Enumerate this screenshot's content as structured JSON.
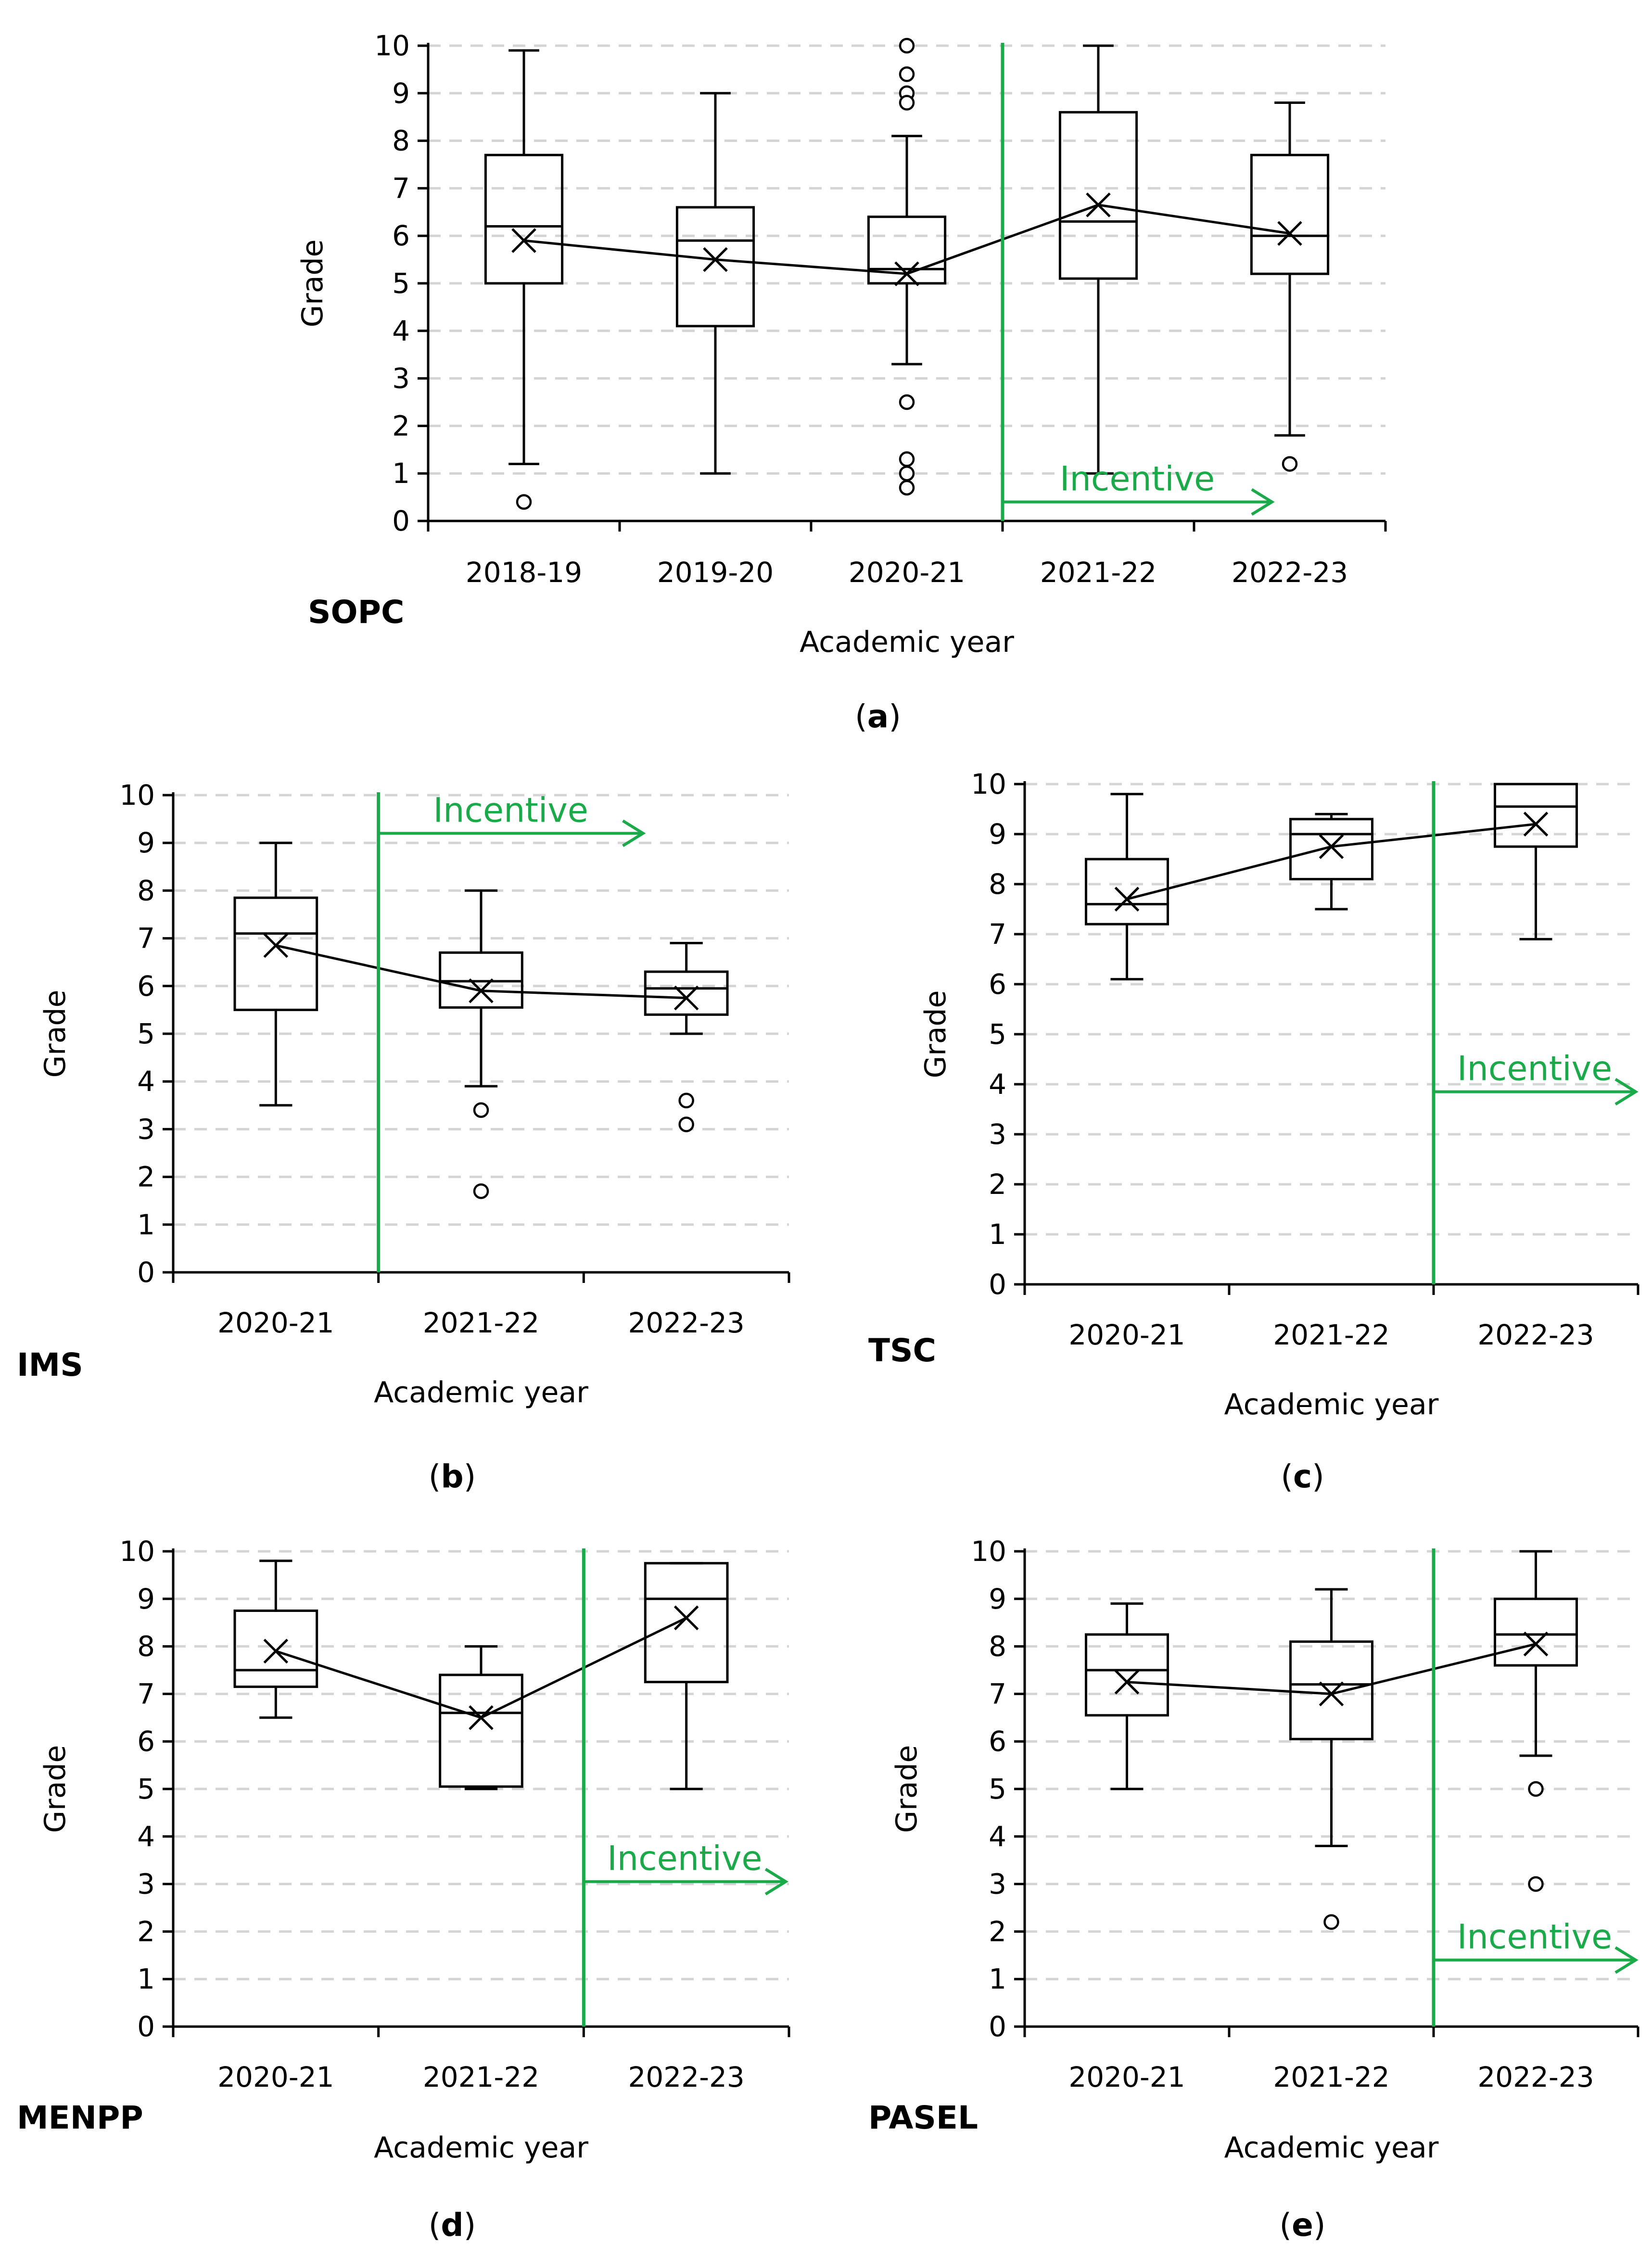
{
  "chart_data": [
    {
      "id": "a",
      "type": "box",
      "panel_label": "SOPC",
      "caption_letter": "a",
      "xlabel": "Academic year",
      "ylabel": "Grade",
      "ylim": [
        0,
        10
      ],
      "yticks": [
        "0",
        "1",
        "2",
        "3",
        "4",
        "5",
        "6",
        "7",
        "8",
        "9",
        "10"
      ],
      "grid": "dashed horizontal",
      "categories": [
        "2018-19",
        "2019-20",
        "2020-21",
        "2021-22",
        "2022-23"
      ],
      "boxes": [
        {
          "min": 1.2,
          "q1": 5.0,
          "median": 6.2,
          "q3": 7.7,
          "max": 9.9,
          "mean": 5.9,
          "outliers": [
            0.4
          ]
        },
        {
          "min": 1.0,
          "q1": 4.1,
          "median": 5.9,
          "q3": 6.6,
          "max": 9.0,
          "mean": 5.5,
          "outliers": []
        },
        {
          "min": 3.3,
          "q1": 5.0,
          "median": 5.3,
          "q3": 6.4,
          "max": 8.1,
          "mean": 5.2,
          "outliers": [
            10.0,
            9.4,
            9.0,
            8.8,
            2.5,
            1.3,
            1.0,
            0.7
          ]
        },
        {
          "min": 1.0,
          "q1": 5.1,
          "median": 6.3,
          "q3": 8.6,
          "max": 10.0,
          "mean": 6.65,
          "outliers": []
        },
        {
          "min": 1.8,
          "q1": 5.2,
          "median": 6.0,
          "q3": 7.7,
          "max": 8.8,
          "mean": 6.05,
          "outliers": [
            1.2
          ]
        }
      ],
      "incentive": {
        "label": "Incentive",
        "starts_after_index": 2,
        "arrow_at_grade": 0.4
      }
    },
    {
      "id": "b",
      "type": "box",
      "panel_label": "IMS",
      "caption_letter": "b",
      "xlabel": "Academic year",
      "ylabel": "Grade",
      "ylim": [
        0,
        10
      ],
      "yticks": [
        "0",
        "1",
        "2",
        "3",
        "4",
        "5",
        "6",
        "7",
        "8",
        "9",
        "10"
      ],
      "grid": "dashed horizontal",
      "categories": [
        "2020-21",
        "2021-22",
        "2022-23"
      ],
      "boxes": [
        {
          "min": 3.5,
          "q1": 5.5,
          "median": 7.1,
          "q3": 7.85,
          "max": 9.0,
          "mean": 6.85,
          "outliers": []
        },
        {
          "min": 3.9,
          "q1": 5.55,
          "median": 6.1,
          "q3": 6.7,
          "max": 8.0,
          "mean": 5.9,
          "outliers": [
            3.4,
            1.7
          ]
        },
        {
          "min": 5.0,
          "q1": 5.4,
          "median": 5.95,
          "q3": 6.3,
          "max": 6.9,
          "mean": 5.75,
          "outliers": [
            3.6,
            3.1
          ]
        }
      ],
      "incentive": {
        "label": "Incentive",
        "starts_after_index": 0,
        "arrow_at_grade": 9.2
      }
    },
    {
      "id": "c",
      "type": "box",
      "panel_label": "TSC",
      "caption_letter": "c",
      "xlabel": "Academic year",
      "ylabel": "Grade",
      "ylim": [
        0,
        10
      ],
      "yticks": [
        "0",
        "1",
        "2",
        "3",
        "4",
        "5",
        "6",
        "7",
        "8",
        "9",
        "10"
      ],
      "grid": "dashed horizontal",
      "categories": [
        "2020-21",
        "2021-22",
        "2022-23"
      ],
      "boxes": [
        {
          "min": 6.1,
          "q1": 7.2,
          "median": 7.6,
          "q3": 8.5,
          "max": 9.8,
          "mean": 7.7,
          "outliers": []
        },
        {
          "min": 7.5,
          "q1": 8.1,
          "median": 9.0,
          "q3": 9.3,
          "max": 9.4,
          "mean": 8.75,
          "outliers": []
        },
        {
          "min": 6.9,
          "q1": 8.75,
          "median": 9.55,
          "q3": 10.0,
          "max": 10.0,
          "mean": 9.2,
          "outliers": []
        }
      ],
      "incentive": {
        "label": "Incentive",
        "starts_after_index": 1,
        "arrow_at_grade": 3.85
      }
    },
    {
      "id": "d",
      "type": "box",
      "panel_label": "MENPP",
      "caption_letter": "d",
      "xlabel": "Academic year",
      "ylabel": "Grade",
      "ylim": [
        0,
        10
      ],
      "yticks": [
        "0",
        "1",
        "2",
        "3",
        "4",
        "5",
        "6",
        "7",
        "8",
        "9",
        "10"
      ],
      "grid": "dashed horizontal",
      "categories": [
        "2020-21",
        "2021-22",
        "2022-23"
      ],
      "boxes": [
        {
          "min": 6.5,
          "q1": 7.15,
          "median": 7.5,
          "q3": 8.75,
          "max": 9.8,
          "mean": 7.9,
          "outliers": []
        },
        {
          "min": 5.0,
          "q1": 5.05,
          "median": 6.6,
          "q3": 7.4,
          "max": 8.0,
          "mean": 6.5,
          "outliers": []
        },
        {
          "min": 5.0,
          "q1": 7.25,
          "median": 9.0,
          "q3": 9.75,
          "max": 9.75,
          "mean": 8.6,
          "outliers": []
        }
      ],
      "incentive": {
        "label": "Incentive",
        "starts_after_index": 1,
        "arrow_at_grade": 3.05
      }
    },
    {
      "id": "e",
      "type": "box",
      "panel_label": "PASEL",
      "caption_letter": "e",
      "xlabel": "Academic year",
      "ylabel": "Grade",
      "ylim": [
        0,
        10
      ],
      "yticks": [
        "0",
        "1",
        "2",
        "3",
        "4",
        "5",
        "6",
        "7",
        "8",
        "9",
        "10"
      ],
      "grid": "dashed horizontal",
      "categories": [
        "2020-21",
        "2021-22",
        "2022-23"
      ],
      "boxes": [
        {
          "min": 5.0,
          "q1": 6.55,
          "median": 7.5,
          "q3": 8.25,
          "max": 8.9,
          "mean": 7.25,
          "outliers": []
        },
        {
          "min": 3.8,
          "q1": 6.05,
          "median": 7.2,
          "q3": 8.1,
          "max": 9.2,
          "mean": 7.0,
          "outliers": [
            2.2
          ]
        },
        {
          "min": 5.7,
          "q1": 7.6,
          "median": 8.25,
          "q3": 9.0,
          "max": 10.0,
          "mean": 8.05,
          "outliers": [
            5.0,
            3.0
          ]
        }
      ],
      "incentive": {
        "label": "Incentive",
        "starts_after_index": 1,
        "arrow_at_grade": 1.4
      }
    }
  ],
  "colors": {
    "incentive": "#1aaa4a",
    "ink": "#000000",
    "grid": "#d4d4d4"
  }
}
